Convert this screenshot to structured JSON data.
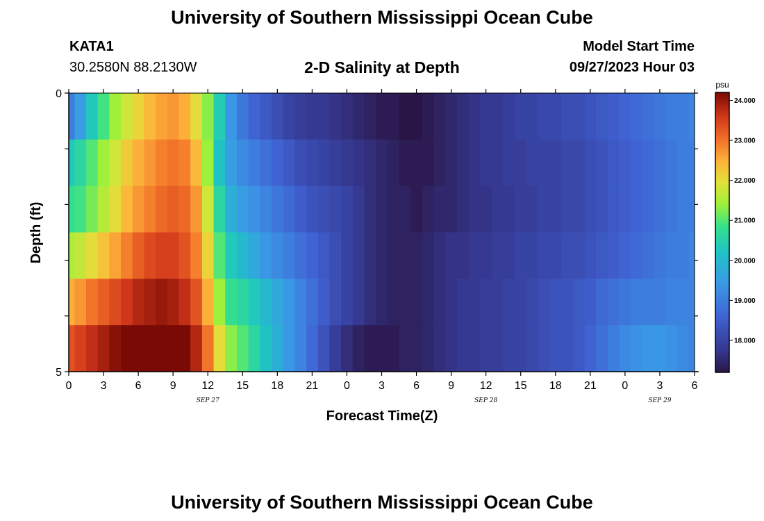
{
  "header": {
    "title": "University of Southern Mississippi Ocean Cube",
    "station_id": "KATA1",
    "coordinates": "30.2580N  88.2130W",
    "chart_title": "2-D Salinity at Depth",
    "model_start_label": "Model Start Time",
    "model_start_value": "09/27/2023 Hour 03"
  },
  "footer": {
    "title": "University of Southern Mississippi Ocean Cube"
  },
  "chart_data": {
    "type": "heatmap",
    "title": "2-D Salinity at Depth",
    "xlabel": "Forecast Time(Z)",
    "ylabel": "Depth (ft)",
    "x_range_hours": [
      0,
      54
    ],
    "x_tick_labels": [
      "0",
      "3",
      "6",
      "9",
      "12",
      "15",
      "18",
      "21",
      "0",
      "3",
      "6",
      "9",
      "12",
      "15",
      "18",
      "21",
      "0",
      "3",
      "6"
    ],
    "date_labels": [
      {
        "label": "SEP 27",
        "hour": 12
      },
      {
        "label": "SEP 28",
        "hour": 36
      },
      {
        "label": "SEP 29",
        "hour": 51
      }
    ],
    "y_range": [
      0,
      5
    ],
    "y_tick_labels": [
      "0",
      "5"
    ],
    "depth_levels": [
      0,
      1,
      2,
      3,
      4,
      5
    ],
    "hours": [
      0,
      1,
      2,
      3,
      4,
      5,
      6,
      7,
      8,
      9,
      10,
      11,
      12,
      13,
      14,
      15,
      16,
      17,
      18,
      19,
      20,
      21,
      22,
      23,
      24,
      25,
      26,
      27,
      28,
      29,
      30,
      31,
      32,
      33,
      34,
      35,
      36,
      37,
      38,
      39,
      40,
      41,
      42,
      43,
      44,
      45,
      46,
      47,
      48,
      49,
      50,
      51,
      52,
      53,
      54
    ],
    "values": [
      [
        19.0,
        19.5,
        20.3,
        20.9,
        21.4,
        21.8,
        22.1,
        22.4,
        22.6,
        22.7,
        22.5,
        22.0,
        21.3,
        20.4,
        19.4,
        18.9,
        18.6,
        18.4,
        18.2,
        18.0,
        17.9,
        17.8,
        17.8,
        17.7,
        17.6,
        17.5,
        17.4,
        17.3,
        17.3,
        17.2,
        17.2,
        17.3,
        17.4,
        17.5,
        17.6,
        17.7,
        17.8,
        17.8,
        17.9,
        18.0,
        18.0,
        18.1,
        18.1,
        18.2,
        18.2,
        18.3,
        18.4,
        18.5,
        18.6,
        18.7,
        18.8,
        18.9,
        19.0,
        19.0,
        19.1
      ],
      [
        20.3,
        20.6,
        21.0,
        21.4,
        21.8,
        22.2,
        22.5,
        22.7,
        22.9,
        23.0,
        22.9,
        22.4,
        21.4,
        20.2,
        19.5,
        19.2,
        19.0,
        18.8,
        18.6,
        18.4,
        18.2,
        18.1,
        18.0,
        17.9,
        17.8,
        17.7,
        17.6,
        17.5,
        17.4,
        17.3,
        17.3,
        17.3,
        17.4,
        17.5,
        17.6,
        17.7,
        17.8,
        17.8,
        17.9,
        17.9,
        18.0,
        18.0,
        18.0,
        18.1,
        18.1,
        18.2,
        18.3,
        18.4,
        18.5,
        18.6,
        18.7,
        18.8,
        18.9,
        19.0,
        19.0
      ],
      [
        20.8,
        20.9,
        21.2,
        21.6,
        22.0,
        22.4,
        22.7,
        22.9,
        23.1,
        23.2,
        23.1,
        22.7,
        21.8,
        20.6,
        19.8,
        19.5,
        19.3,
        19.1,
        18.9,
        18.7,
        18.5,
        18.3,
        18.2,
        18.1,
        18.0,
        17.8,
        17.6,
        17.5,
        17.4,
        17.4,
        17.3,
        17.4,
        17.5,
        17.5,
        17.6,
        17.7,
        17.7,
        17.8,
        17.8,
        17.9,
        17.9,
        18.0,
        18.0,
        18.1,
        18.1,
        18.2,
        18.3,
        18.4,
        18.5,
        18.6,
        18.7,
        18.8,
        18.9,
        19.0,
        19.0
      ],
      [
        21.5,
        21.7,
        22.0,
        22.3,
        22.6,
        22.9,
        23.2,
        23.4,
        23.5,
        23.5,
        23.3,
        22.9,
        22.1,
        21.0,
        20.3,
        20.0,
        19.7,
        19.4,
        19.2,
        19.0,
        18.8,
        18.6,
        18.4,
        18.2,
        18.0,
        17.8,
        17.6,
        17.5,
        17.4,
        17.4,
        17.4,
        17.5,
        17.6,
        17.7,
        17.7,
        17.8,
        17.8,
        17.9,
        17.9,
        18.0,
        18.0,
        18.1,
        18.1,
        18.2,
        18.2,
        18.3,
        18.4,
        18.5,
        18.6,
        18.7,
        18.8,
        18.9,
        19.0,
        19.0,
        19.1
      ],
      [
        22.5,
        22.7,
        23.0,
        23.2,
        23.4,
        23.6,
        23.8,
        23.9,
        24.0,
        23.9,
        23.7,
        23.3,
        22.5,
        21.4,
        20.8,
        20.6,
        20.3,
        20.0,
        19.7,
        19.4,
        19.1,
        18.8,
        18.5,
        18.2,
        18.0,
        17.8,
        17.6,
        17.5,
        17.4,
        17.4,
        17.4,
        17.5,
        17.6,
        17.7,
        17.8,
        17.8,
        17.9,
        17.9,
        18.0,
        18.0,
        18.1,
        18.2,
        18.3,
        18.3,
        18.4,
        18.5,
        18.7,
        18.8,
        18.9,
        19.0,
        19.0,
        19.0,
        19.1,
        19.1,
        19.1
      ],
      [
        23.3,
        23.5,
        23.7,
        23.9,
        24.1,
        24.3,
        24.4,
        24.5,
        24.5,
        24.4,
        24.2,
        23.8,
        23.0,
        22.0,
        21.3,
        21.0,
        20.6,
        20.2,
        19.8,
        19.4,
        19.1,
        18.7,
        18.3,
        17.9,
        17.6,
        17.4,
        17.3,
        17.3,
        17.3,
        17.4,
        17.4,
        17.5,
        17.6,
        17.7,
        17.8,
        17.8,
        17.9,
        17.9,
        18.0,
        18.0,
        18.1,
        18.2,
        18.3,
        18.3,
        18.4,
        18.6,
        18.8,
        19.0,
        19.2,
        19.3,
        19.4,
        19.4,
        19.3,
        19.2,
        19.1
      ]
    ],
    "colorbar": {
      "unit": "psu",
      "vmin": 17.2,
      "vmax": 24.2,
      "tick_values": [
        18,
        19,
        20,
        21,
        22,
        23,
        24
      ],
      "tick_labels": [
        "18.000",
        "19.000",
        "20.000",
        "21.000",
        "22.000",
        "23.000",
        "24.000"
      ],
      "colormap": [
        [
          0.0,
          "#2a1646"
        ],
        [
          0.08,
          "#35378f"
        ],
        [
          0.2,
          "#4063d4"
        ],
        [
          0.32,
          "#3a9ae6"
        ],
        [
          0.43,
          "#1fc4c4"
        ],
        [
          0.52,
          "#35e08c"
        ],
        [
          0.6,
          "#9ef03a"
        ],
        [
          0.68,
          "#e2e03a"
        ],
        [
          0.75,
          "#fdb53a"
        ],
        [
          0.83,
          "#f2722a"
        ],
        [
          0.91,
          "#d2391a"
        ],
        [
          1.0,
          "#7a0a05"
        ]
      ]
    }
  }
}
